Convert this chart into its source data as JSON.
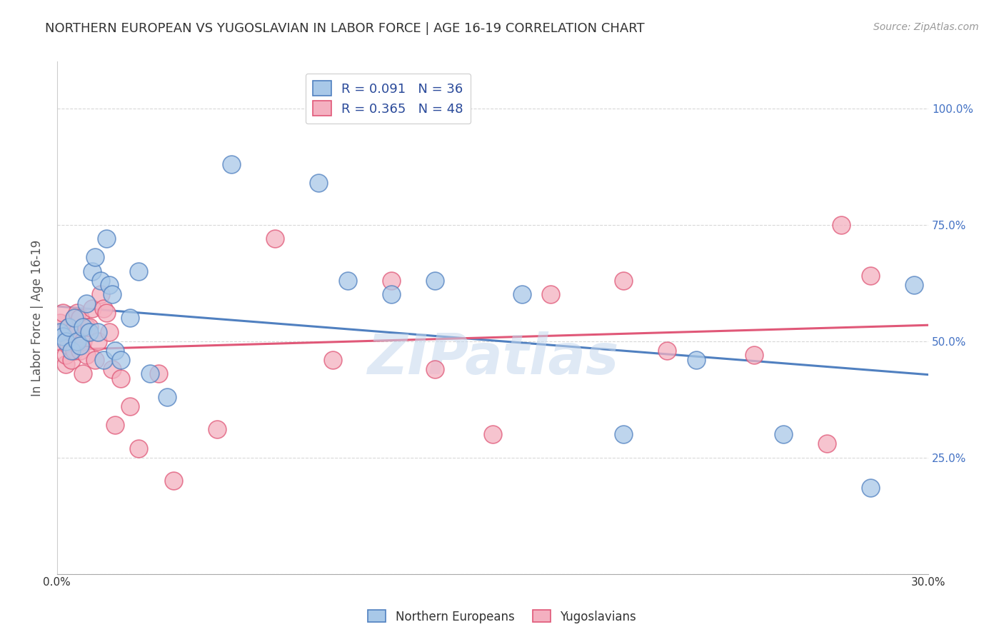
{
  "title": "NORTHERN EUROPEAN VS YUGOSLAVIAN IN LABOR FORCE | AGE 16-19 CORRELATION CHART",
  "source": "Source: ZipAtlas.com",
  "ylabel": "In Labor Force | Age 16-19",
  "xlim": [
    0.0,
    0.3
  ],
  "ylim": [
    0.0,
    1.1
  ],
  "xticks": [
    0.0,
    0.03,
    0.06,
    0.09,
    0.12,
    0.15,
    0.18,
    0.21,
    0.24,
    0.27,
    0.3
  ],
  "xtick_labels": [
    "0.0%",
    "",
    "",
    "",
    "",
    "",
    "",
    "",
    "",
    "",
    "30.0%"
  ],
  "yticks": [
    0.0,
    0.25,
    0.5,
    0.75,
    1.0
  ],
  "ytick_labels": [
    "",
    "25.0%",
    "50.0%",
    "75.0%",
    "100.0%"
  ],
  "blue_color": "#a8c8e8",
  "pink_color": "#f4b0c0",
  "blue_line_color": "#5080c0",
  "pink_line_color": "#e05878",
  "legend_blue_label": "R = 0.091   N = 36",
  "legend_pink_label": "R = 0.365   N = 48",
  "northern_europeans_x": [
    0.001,
    0.002,
    0.003,
    0.004,
    0.005,
    0.006,
    0.007,
    0.008,
    0.009,
    0.01,
    0.011,
    0.012,
    0.013,
    0.014,
    0.015,
    0.016,
    0.017,
    0.018,
    0.019,
    0.02,
    0.022,
    0.025,
    0.028,
    0.032,
    0.038,
    0.06,
    0.09,
    0.1,
    0.115,
    0.13,
    0.16,
    0.195,
    0.22,
    0.25,
    0.28,
    0.295
  ],
  "northern_europeans_y": [
    0.52,
    0.51,
    0.5,
    0.53,
    0.48,
    0.55,
    0.5,
    0.49,
    0.53,
    0.58,
    0.52,
    0.65,
    0.68,
    0.52,
    0.63,
    0.46,
    0.72,
    0.62,
    0.6,
    0.48,
    0.46,
    0.55,
    0.65,
    0.43,
    0.38,
    0.88,
    0.84,
    0.63,
    0.6,
    0.63,
    0.6,
    0.3,
    0.46,
    0.3,
    0.185,
    0.62
  ],
  "yugoslavians_x": [
    0.001,
    0.001,
    0.002,
    0.002,
    0.003,
    0.003,
    0.004,
    0.004,
    0.005,
    0.005,
    0.006,
    0.006,
    0.007,
    0.007,
    0.008,
    0.008,
    0.009,
    0.009,
    0.01,
    0.01,
    0.011,
    0.012,
    0.013,
    0.014,
    0.015,
    0.016,
    0.017,
    0.018,
    0.019,
    0.02,
    0.022,
    0.025,
    0.028,
    0.035,
    0.04,
    0.055,
    0.075,
    0.095,
    0.115,
    0.13,
    0.15,
    0.17,
    0.195,
    0.21,
    0.24,
    0.265,
    0.27,
    0.28
  ],
  "yugoslavians_y": [
    0.54,
    0.5,
    0.52,
    0.56,
    0.45,
    0.47,
    0.53,
    0.49,
    0.46,
    0.52,
    0.48,
    0.55,
    0.56,
    0.52,
    0.55,
    0.48,
    0.43,
    0.5,
    0.53,
    0.47,
    0.53,
    0.57,
    0.46,
    0.5,
    0.6,
    0.57,
    0.56,
    0.52,
    0.44,
    0.32,
    0.42,
    0.36,
    0.27,
    0.43,
    0.2,
    0.31,
    0.72,
    0.46,
    0.63,
    0.44,
    0.3,
    0.6,
    0.63,
    0.48,
    0.47,
    0.28,
    0.75,
    0.64
  ],
  "watermark": "ZIPatlas",
  "bg_color": "#ffffff",
  "grid_color": "#d8d8d8",
  "title_color": "#333333",
  "axis_label_color": "#555555",
  "right_ytick_color": "#4472c4"
}
